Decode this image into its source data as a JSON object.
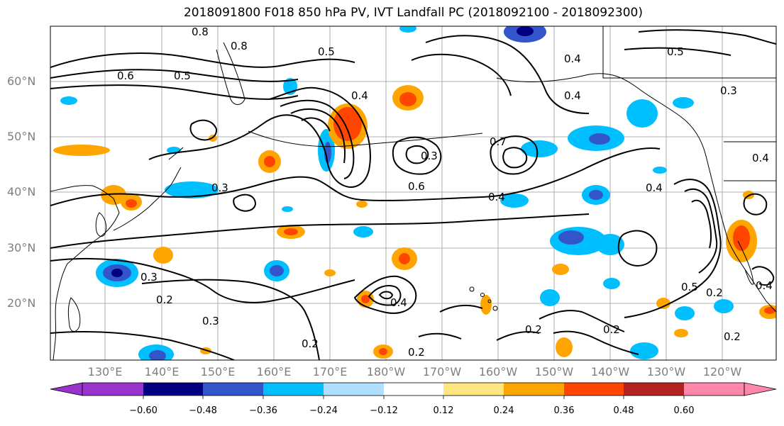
{
  "title": "2018091800 F018 850 hPa PV, IVT Landfall PC (2018092100 - 2018092300)",
  "latitude_labels": [
    "60°N",
    "50°N",
    "40°N",
    "30°N",
    "20°N"
  ],
  "longitude_labels": [
    "130°E",
    "140°E",
    "150°E",
    "160°E",
    "170°E",
    "180°W",
    "170°W",
    "160°W",
    "150°W",
    "140°W",
    "130°W",
    "120°W"
  ],
  "colorbar": {
    "ticks": [
      "−0.60",
      "−0.48",
      "−0.36",
      "−0.24",
      "−0.12",
      "0.12",
      "0.24",
      "0.36",
      "0.48",
      "0.60"
    ],
    "colors": [
      "#9933cc",
      "#000080",
      "#3355cc",
      "#00bfff",
      "#b0e0ff",
      "#ffffff",
      "#ffe680",
      "#ffa500",
      "#ff4500",
      "#b22222",
      "#ff88aa"
    ]
  },
  "contour_labels": [
    "0.8",
    "0.5",
    "0.6",
    "0.5",
    "0.4",
    "0.7",
    "0.8",
    "0.5",
    "0.3",
    "0.4",
    "0.4",
    "0.3",
    "0.6",
    "0.4",
    "0.3",
    "0.4",
    "0.3",
    "0.2",
    "0.3",
    "0.2",
    "0.2",
    "0.4",
    "0.2",
    "0.2",
    "0.2",
    "0.4",
    "0.5",
    "0.2",
    "0.4"
  ]
}
